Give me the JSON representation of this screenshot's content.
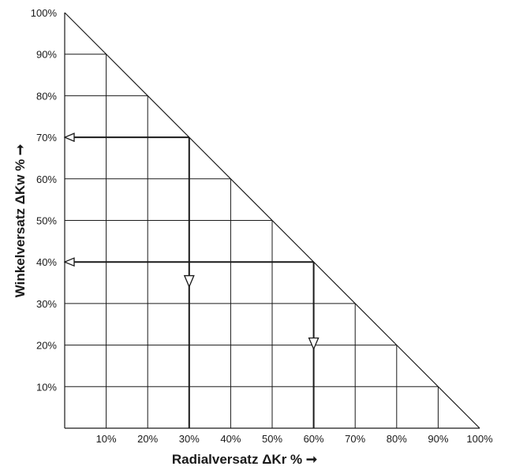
{
  "chart_data": {
    "type": "line",
    "xlabel": "Radialversatz ΔKr % ➞",
    "ylabel": "Winkelversatz ΔKw % ➞",
    "xlim": [
      0,
      100
    ],
    "ylim": [
      0,
      100
    ],
    "x_ticks": [
      "10%",
      "20%",
      "30%",
      "40%",
      "50%",
      "60%",
      "70%",
      "80%",
      "90%",
      "100%"
    ],
    "y_ticks": [
      "10%",
      "20%",
      "30%",
      "40%",
      "50%",
      "60%",
      "70%",
      "80%",
      "90%",
      "100%"
    ],
    "grid": true,
    "boundary": {
      "x": [
        0,
        100
      ],
      "y": [
        100,
        0
      ]
    },
    "examples": [
      {
        "radial": 30,
        "angular": 70
      },
      {
        "radial": 60,
        "angular": 40
      }
    ],
    "colors": {
      "line": "#1a1a1a",
      "grid": "#1a1a1a",
      "background": "#ffffff"
    }
  }
}
